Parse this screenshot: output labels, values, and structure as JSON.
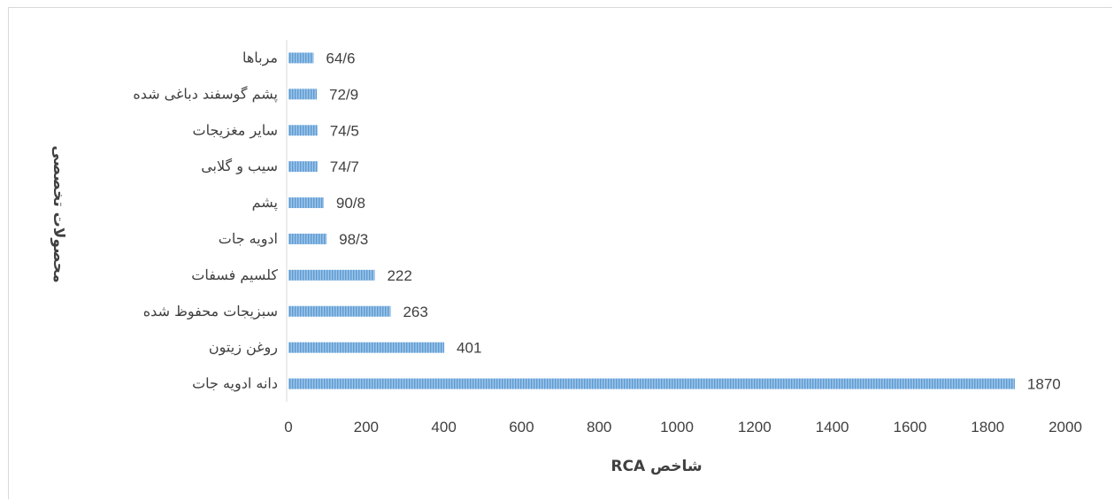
{
  "chart_data": {
    "type": "bar",
    "orientation": "horizontal",
    "categories": [
      "مرباها",
      "پشم گوسفند دباغی شده",
      "سایر مغزیجات",
      "سیب و گلابی",
      "پشم",
      "ادویه جات",
      "کلسیم فسفات",
      "سبزیجات محفوظ شده",
      "روغن زیتون",
      "دانه ادویه جات"
    ],
    "values": [
      64.6,
      72.9,
      74.5,
      74.7,
      90.8,
      98.3,
      222,
      263,
      401,
      1870
    ],
    "data_labels": [
      "64/6",
      "72/9",
      "74/5",
      "74/7",
      "90/8",
      "98/3",
      "222",
      "263",
      "401",
      "1870"
    ],
    "xlabel": "شاخص RCA",
    "ylabel": "محصولات تخصصی",
    "xlim": [
      0,
      2000
    ],
    "xticks": [
      "0",
      "200",
      "400",
      "600",
      "800",
      "1000",
      "1200",
      "1400",
      "1600",
      "1800",
      "2000"
    ],
    "grid": false,
    "legend": "none",
    "bar_color": "#5b9bd5"
  }
}
